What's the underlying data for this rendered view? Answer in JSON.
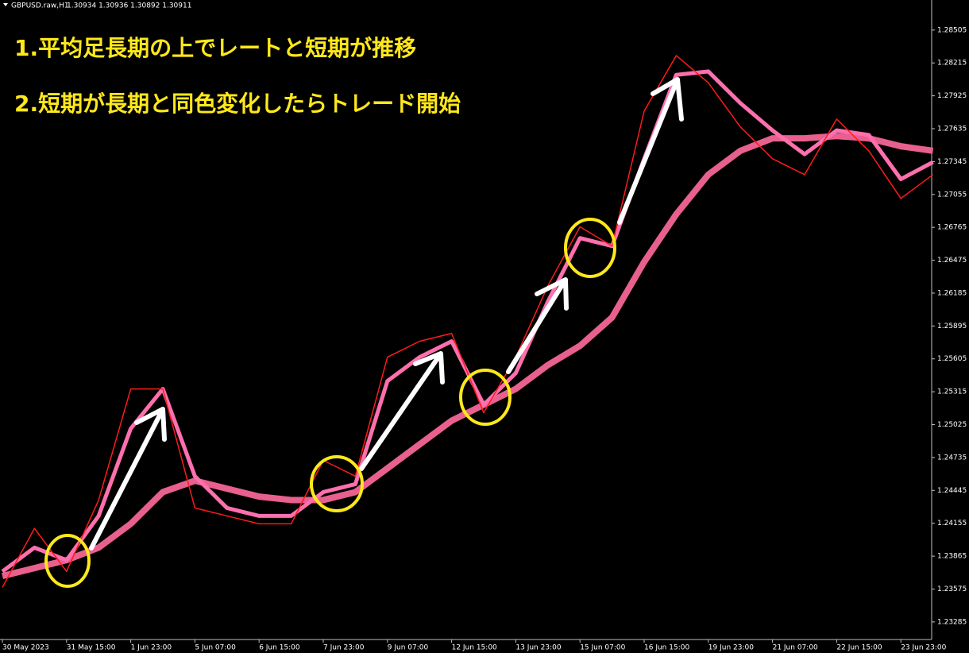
{
  "chart_data": {
    "type": "line",
    "title": "GBPUSD.raw,H1",
    "ohlc": "1.30934 1.30936 1.30892 1.30911",
    "annotations": [
      "1.平均足長期の上でレートと短期が推移",
      "2.短期が長期と同色変化したらトレード開始"
    ],
    "categories": [
      "30 May 2023",
      null,
      "31 May 15:00",
      null,
      "1 Jun 23:00",
      null,
      "5 Jun 07:00",
      null,
      "6 Jun 15:00",
      null,
      "7 Jun 23:00",
      null,
      "9 Jun 07:00",
      null,
      "12 Jun 15:00",
      null,
      "13 Jun 23:00",
      null,
      "15 Jun 07:00",
      null,
      "16 Jun 15:00",
      null,
      "19 Jun 23:00",
      null,
      "21 Jun 07:00",
      null,
      "22 Jun 15:00",
      null,
      "23 Jun 23:00",
      null
    ],
    "series": [
      {
        "color": "#e8608e",
        "values": [
          1.2369,
          1.2376,
          1.2383,
          1.2394,
          1.2415,
          1.2443,
          1.2453,
          1.2446,
          1.2439,
          1.2436,
          1.2436,
          1.2443,
          1.2464,
          1.2485,
          1.2506,
          1.252,
          1.2534,
          1.2555,
          1.2572,
          1.2597,
          1.2646,
          1.2688,
          1.2723,
          1.2744,
          1.2755,
          1.2755,
          1.2757,
          1.2755,
          1.2748,
          1.2744
        ]
      },
      {
        "color": "#ff6fae",
        "values": [
          1.2373,
          1.2394,
          1.2383,
          1.2422,
          1.2499,
          1.2534,
          1.2457,
          1.2429,
          1.2422,
          1.2422,
          1.2443,
          1.245,
          1.2541,
          1.2562,
          1.2576,
          1.252,
          1.2548,
          1.2611,
          1.2667,
          1.266,
          1.2737,
          1.2811,
          1.2814,
          1.2786,
          1.2762,
          1.2741,
          1.2762,
          1.2758,
          1.2719,
          1.2734
        ]
      },
      {
        "color": "#ff1a1a",
        "values": [
          1.2359,
          1.2411,
          1.2373,
          1.2436,
          1.2534,
          1.2534,
          1.2429,
          1.2422,
          1.2415,
          1.2415,
          1.2471,
          1.2457,
          1.2562,
          1.2576,
          1.2583,
          1.2513,
          1.2562,
          1.2625,
          1.2677,
          1.266,
          1.2779,
          1.2828,
          1.2804,
          1.2765,
          1.2737,
          1.2723,
          1.2772,
          1.2744,
          1.2702,
          1.2723
        ]
      }
    ],
    "ylim": [
      1.2313,
      1.2877
    ],
    "yticks": [
      1.28505,
      1.28215,
      1.27925,
      1.27635,
      1.27345,
      1.27055,
      1.26765,
      1.26475,
      1.26185,
      1.25895,
      1.25605,
      1.25315,
      1.25025,
      1.24735,
      1.24445,
      1.24155,
      1.23865,
      1.23575,
      1.23285
    ],
    "grid": false
  }
}
